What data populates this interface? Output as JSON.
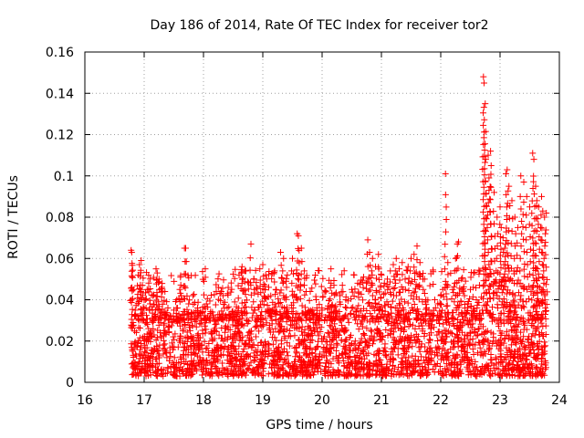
{
  "chart_data": {
    "type": "scatter",
    "title": "Day 186 of 2014, Rate Of TEC Index for receiver tor2",
    "xlabel": "GPS time / hours",
    "ylabel": "ROTI / TECUs",
    "xlim": [
      16,
      24
    ],
    "ylim": [
      0,
      0.16
    ],
    "xticks": [
      16,
      17,
      18,
      19,
      20,
      21,
      22,
      23,
      24
    ],
    "yticks": [
      0,
      0.02,
      0.04,
      0.06,
      0.08,
      0.1,
      0.12,
      0.14,
      0.16
    ],
    "xtick_labels": [
      "16",
      "17",
      "18",
      "19",
      "20",
      "21",
      "22",
      "23",
      "24"
    ],
    "ytick_labels": [
      "0",
      "0.02",
      "0.04",
      "0.06",
      "0.08",
      "0.1",
      "0.12",
      "0.14",
      "0.16"
    ],
    "grid": true,
    "marker": "+",
    "color": "#ff0000",
    "x_range_of_data": [
      16.78,
      23.78
    ],
    "series": [
      {
        "name": "ROTI",
        "points": [
          [
            16.78,
            0.064
          ],
          [
            16.79,
            0.063
          ],
          [
            16.8,
            0.051
          ],
          [
            16.82,
            0.045
          ],
          [
            16.85,
            0.035
          ],
          [
            16.9,
            0.052
          ],
          [
            16.92,
            0.057
          ],
          [
            16.95,
            0.059
          ],
          [
            16.97,
            0.047
          ],
          [
            17.02,
            0.04
          ],
          [
            17.05,
            0.045
          ],
          [
            17.1,
            0.038
          ],
          [
            17.15,
            0.042
          ],
          [
            17.2,
            0.055
          ],
          [
            17.22,
            0.053
          ],
          [
            17.25,
            0.05
          ],
          [
            17.3,
            0.046
          ],
          [
            17.35,
            0.044
          ],
          [
            17.4,
            0.036
          ],
          [
            17.45,
            0.032
          ],
          [
            17.5,
            0.035
          ],
          [
            17.55,
            0.04
          ],
          [
            17.6,
            0.045
          ],
          [
            17.68,
            0.065
          ],
          [
            17.7,
            0.065
          ],
          [
            17.75,
            0.038
          ],
          [
            17.82,
            0.042
          ],
          [
            17.9,
            0.036
          ],
          [
            17.95,
            0.034
          ],
          [
            18.05,
            0.038
          ],
          [
            18.1,
            0.031
          ],
          [
            18.2,
            0.028
          ],
          [
            18.3,
            0.044
          ],
          [
            18.33,
            0.042
          ],
          [
            18.4,
            0.036
          ],
          [
            18.5,
            0.033
          ],
          [
            18.6,
            0.052
          ],
          [
            18.65,
            0.056
          ],
          [
            18.7,
            0.054
          ],
          [
            18.8,
            0.067
          ],
          [
            18.85,
            0.05
          ],
          [
            18.95,
            0.055
          ],
          [
            19.0,
            0.057
          ],
          [
            19.05,
            0.052
          ],
          [
            19.1,
            0.046
          ],
          [
            19.2,
            0.054
          ],
          [
            19.3,
            0.063
          ],
          [
            19.35,
            0.06
          ],
          [
            19.4,
            0.046
          ],
          [
            19.5,
            0.06
          ],
          [
            19.58,
            0.072
          ],
          [
            19.6,
            0.071
          ],
          [
            19.65,
            0.065
          ],
          [
            19.7,
            0.047
          ],
          [
            19.8,
            0.044
          ],
          [
            19.9,
            0.04
          ],
          [
            20.0,
            0.035
          ],
          [
            20.1,
            0.037
          ],
          [
            20.15,
            0.048
          ],
          [
            20.2,
            0.047
          ],
          [
            20.3,
            0.042
          ],
          [
            20.4,
            0.04
          ],
          [
            20.5,
            0.045
          ],
          [
            20.6,
            0.048
          ],
          [
            20.7,
            0.051
          ],
          [
            20.77,
            0.069
          ],
          [
            20.8,
            0.063
          ],
          [
            20.85,
            0.06
          ],
          [
            20.9,
            0.056
          ],
          [
            20.95,
            0.062
          ],
          [
            21.0,
            0.052
          ],
          [
            21.05,
            0.048
          ],
          [
            21.1,
            0.05
          ],
          [
            21.15,
            0.054
          ],
          [
            21.2,
            0.057
          ],
          [
            21.25,
            0.06
          ],
          [
            21.3,
            0.055
          ],
          [
            21.35,
            0.058
          ],
          [
            21.4,
            0.05
          ],
          [
            21.45,
            0.056
          ],
          [
            21.5,
            0.06
          ],
          [
            21.55,
            0.062
          ],
          [
            21.6,
            0.066
          ],
          [
            21.65,
            0.058
          ],
          [
            21.7,
            0.05
          ],
          [
            21.75,
            0.04
          ],
          [
            21.8,
            0.035
          ],
          [
            21.85,
            0.03
          ],
          [
            21.9,
            0.04
          ],
          [
            21.95,
            0.038
          ],
          [
            22.0,
            0.042
          ],
          [
            22.08,
            0.101
          ],
          [
            22.12,
            0.058
          ],
          [
            22.2,
            0.045
          ],
          [
            22.25,
            0.06
          ],
          [
            22.28,
            0.067
          ],
          [
            22.3,
            0.068
          ],
          [
            22.35,
            0.05
          ],
          [
            22.4,
            0.042
          ],
          [
            22.45,
            0.038
          ],
          [
            22.5,
            0.045
          ],
          [
            22.55,
            0.046
          ],
          [
            22.6,
            0.04
          ],
          [
            22.7,
            0.035
          ],
          [
            22.72,
            0.148
          ],
          [
            22.73,
            0.145
          ],
          [
            22.75,
            0.135
          ],
          [
            22.76,
            0.108
          ],
          [
            22.8,
            0.11
          ],
          [
            22.84,
            0.112
          ],
          [
            22.85,
            0.105
          ],
          [
            22.9,
            0.092
          ],
          [
            22.95,
            0.08
          ],
          [
            23.0,
            0.085
          ],
          [
            23.02,
            0.075
          ],
          [
            23.05,
            0.07
          ],
          [
            23.08,
            0.065
          ],
          [
            23.1,
            0.101
          ],
          [
            23.12,
            0.103
          ],
          [
            23.15,
            0.095
          ],
          [
            23.2,
            0.088
          ],
          [
            23.25,
            0.08
          ],
          [
            23.3,
            0.075
          ],
          [
            23.35,
            0.1
          ],
          [
            23.4,
            0.097
          ],
          [
            23.45,
            0.09
          ],
          [
            23.5,
            0.085
          ],
          [
            23.55,
            0.111
          ],
          [
            23.57,
            0.108
          ],
          [
            23.6,
            0.095
          ],
          [
            23.62,
            0.088
          ],
          [
            23.65,
            0.085
          ],
          [
            23.7,
            0.09
          ],
          [
            23.72,
            0.083
          ],
          [
            23.75,
            0.08
          ],
          [
            23.78,
            0.082
          ]
        ],
        "noise_band": {
          "description": "dense cluster of points filling the lower band",
          "x_range": [
            16.78,
            23.78
          ],
          "y_range": [
            0.003,
            0.035
          ],
          "approx_count": 2400
        }
      }
    ]
  }
}
